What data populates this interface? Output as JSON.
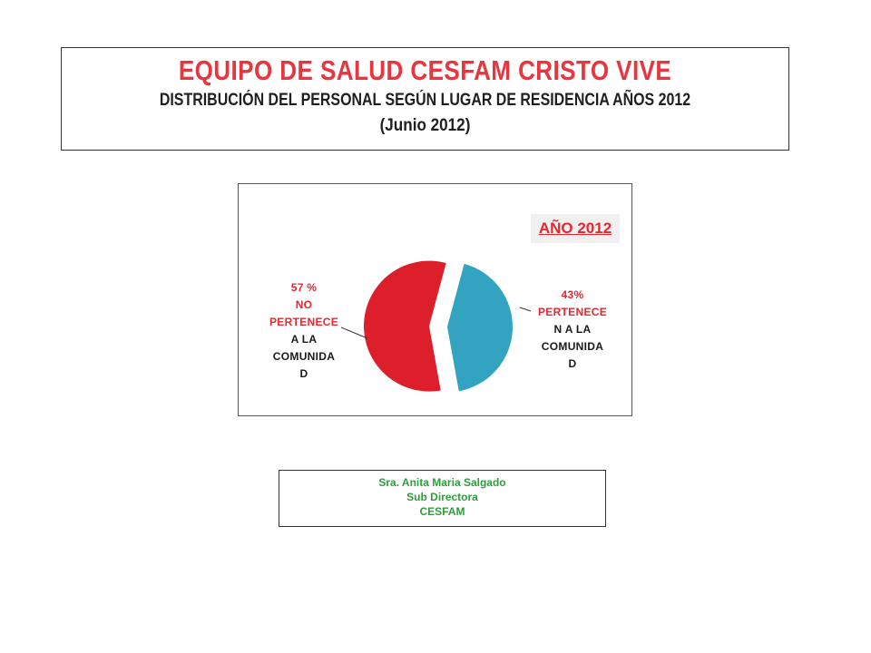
{
  "header": {
    "title": "EQUIPO DE SALUD CESFAM CRISTO VIVE",
    "subtitle": "DISTRIBUCIÓN DEL PERSONAL SEGÚN LUGAR DE RESIDENCIA  AÑOS 2012",
    "date": "(Junio 2012)"
  },
  "chart_data": {
    "type": "pie",
    "title": "AÑO 2012",
    "slices": [
      {
        "label": "PERTENECEN A LA COMUNIDAD",
        "value": 43,
        "color": "#32a3c0",
        "label_lines": [
          "43%",
          "PERTENECE",
          "N A LA",
          "COMUNIDA",
          "D"
        ],
        "value_text": "43%"
      },
      {
        "label": "NO PERTENECE A LA COMUNIDAD",
        "value": 57,
        "color": "#dc1f2a",
        "label_lines": [
          "57 %",
          "NO",
          "PERTENECE",
          "A LA",
          "COMUNIDA",
          "D"
        ],
        "value_text": "57 %"
      }
    ]
  },
  "signature": {
    "name": "Sra. Anita Maria Salgado",
    "role": "Sub Directora",
    "org": "CESFAM"
  },
  "colors": {
    "title_red": "#e8353e",
    "label_red": "#e8262e",
    "signature_green": "#2e9e3a"
  }
}
